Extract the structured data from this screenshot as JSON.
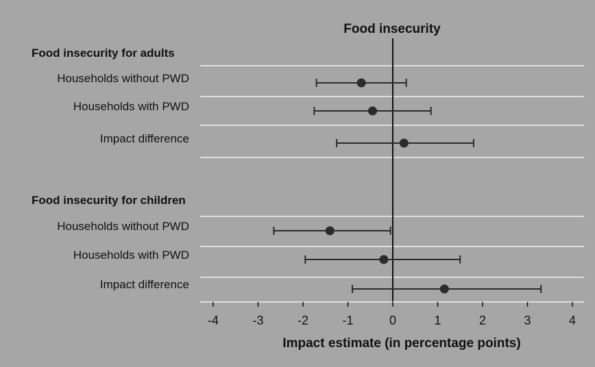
{
  "chart_data": {
    "type": "scatter",
    "title": "Food insecurity",
    "xlabel": "Impact estimate (in percentage points)",
    "xlim": [
      -4,
      4
    ],
    "xticks": [
      "-4",
      "-3",
      "-2",
      "-1",
      "0",
      "1",
      "2",
      "3",
      "4"
    ],
    "grid": true,
    "sections": [
      {
        "label": "Food insecurity for adults",
        "rows": [
          {
            "label": "Households without PWD",
            "estimate": -0.7,
            "ci": [
              -1.7,
              0.3
            ]
          },
          {
            "label": "Households with PWD",
            "estimate": -0.45,
            "ci": [
              -1.75,
              0.85
            ]
          },
          {
            "label": "Impact difference",
            "estimate": 0.25,
            "ci": [
              -1.25,
              1.8
            ]
          }
        ]
      },
      {
        "label": "Food insecurity for children",
        "rows": [
          {
            "label": "Households without PWD",
            "estimate": -1.4,
            "ci": [
              -2.65,
              -0.05
            ]
          },
          {
            "label": "Households with PWD",
            "estimate": -0.2,
            "ci": [
              -1.95,
              1.5
            ]
          },
          {
            "label": "Impact difference",
            "estimate": 1.15,
            "ci": [
              -0.9,
              3.3
            ]
          }
        ]
      }
    ]
  },
  "colors": {
    "background": "#a6a6a6",
    "text": "#111111",
    "marker": "#2b2b2b",
    "gridline": "#ffffff",
    "axis": "#111111"
  }
}
